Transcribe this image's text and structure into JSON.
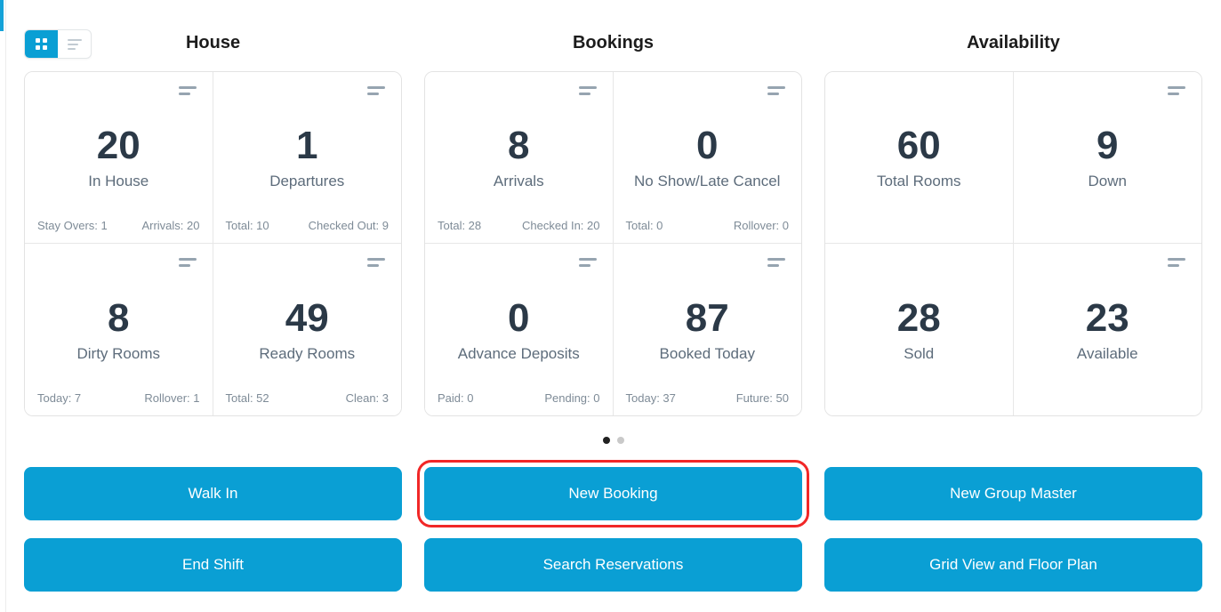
{
  "view_toggle": {
    "active_view": "grid",
    "options": [
      "grid-view",
      "list-view"
    ]
  },
  "columns": [
    {
      "title": "House",
      "cards": [
        {
          "value": "20",
          "label": "In House",
          "footer_left": "Stay Overs: 1",
          "footer_right": "Arrivals: 20"
        },
        {
          "value": "1",
          "label": "Departures",
          "footer_left": "Total: 10",
          "footer_right": "Checked Out: 9"
        },
        {
          "value": "8",
          "label": "Dirty Rooms",
          "footer_left": "Today: 7",
          "footer_right": "Rollover: 1"
        },
        {
          "value": "49",
          "label": "Ready Rooms",
          "footer_left": "Total: 52",
          "footer_right": "Clean: 3"
        }
      ]
    },
    {
      "title": "Bookings",
      "cards": [
        {
          "value": "8",
          "label": "Arrivals",
          "footer_left": "Total: 28",
          "footer_right": "Checked In: 20"
        },
        {
          "value": "0",
          "label": "No Show/Late Cancel",
          "footer_left": "Total: 0",
          "footer_right": "Rollover: 0"
        },
        {
          "value": "0",
          "label": "Advance Deposits",
          "footer_left": "Paid: 0",
          "footer_right": "Pending: 0"
        },
        {
          "value": "87",
          "label": "Booked Today",
          "footer_left": "Today: 37",
          "footer_right": "Future: 50"
        }
      ]
    },
    {
      "title": "Availability",
      "cards": [
        {
          "value": "60",
          "label": "Total Rooms"
        },
        {
          "value": "9",
          "label": "Down"
        },
        {
          "value": "28",
          "label": "Sold"
        },
        {
          "value": "23",
          "label": "Available"
        }
      ]
    }
  ],
  "carousel": {
    "dots": 2,
    "active_dot": 1
  },
  "actions": {
    "row1": [
      "Walk In",
      "New Booking",
      "New Group Master"
    ],
    "row2": [
      "End Shift",
      "Search Reservations",
      "Grid View and Floor Plan"
    ]
  },
  "annotation": {
    "target": "New Booking",
    "color": "#f12727"
  },
  "colors": {
    "accent": "#0a9fd4",
    "number_text": "#2b3947",
    "label_text": "#5d6c7b",
    "footer_text": "#7e8b97"
  }
}
